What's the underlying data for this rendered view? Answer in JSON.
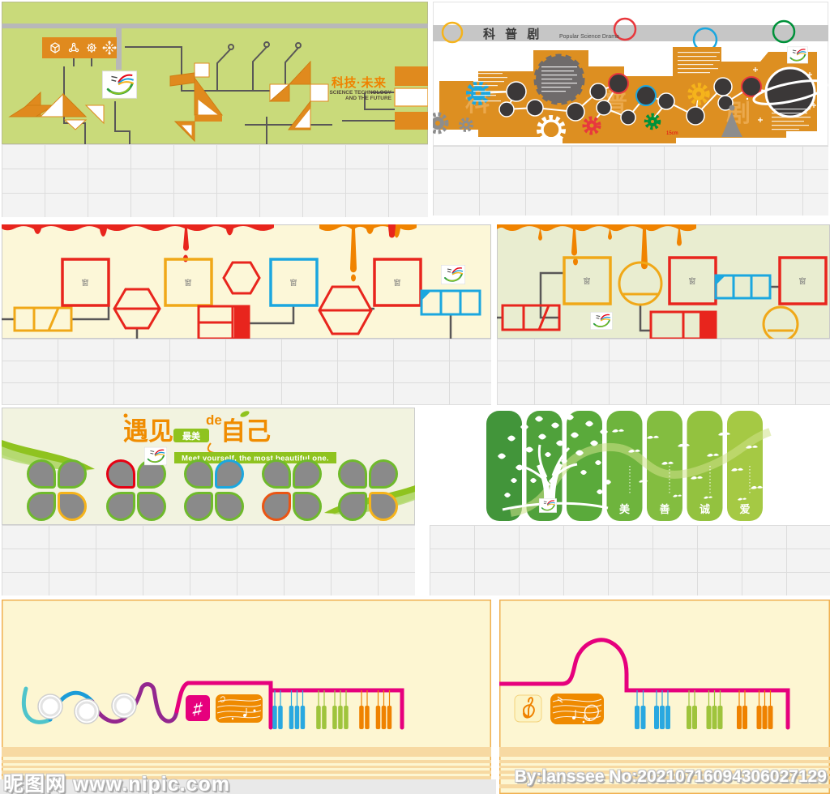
{
  "watermark": {
    "site": "昵图网 www.nipic.com",
    "credit": "By:lanssee No:20210716094306027129"
  },
  "panels": {
    "tech": {
      "title": "科技·未来",
      "subtitle1": "SCIENCE TECHNOLOGY",
      "subtitle2": "AND THE FUTURE"
    },
    "drama": {
      "title": "科 普 剧",
      "subtitle": "Popular Science Drama",
      "ghost_char1": "科",
      "ghost_char2": "普",
      "ghost_char3": "剧",
      "measure_label": "15cm"
    },
    "window_wall": {
      "placeholder_glyph": "窗"
    },
    "meet": {
      "title_lead": "遇见",
      "title_badge": "最美",
      "title_de": "de",
      "title_tail": "自己",
      "banner": "Meet yourself, the most beautiful one."
    },
    "virtue": {
      "char1": "美",
      "char2": "善",
      "char3": "诚",
      "char4": "爱"
    },
    "music": {
      "sharp_glyph": "♯"
    }
  },
  "colors": {
    "tech_wall_green": "#c9da7a",
    "accent_orange": "#e08a1e",
    "drama_wall_orange": "#dd8f21",
    "cream": "#fcf7d8",
    "cream_green": "#e9edd0",
    "drip_red": "#e8251d",
    "frame_yellow": "#f0a818",
    "frame_blue": "#1ba7df",
    "title_orange": "#f08c00",
    "leaf_green": "#8fc31f",
    "petal_gray": "#8a8a8a",
    "magenta": "#e6007d",
    "wave_teal": "#4fc4cb",
    "wave_blue": "#1b9cd8",
    "wave_purple": "#93278f",
    "key_blue": "#29a8e0",
    "key_green": "#9fc43c",
    "key_orange": "#ef8200",
    "bar_greens": [
      "#42953a",
      "#4fa13b",
      "#5aaa3b",
      "#6eb43d",
      "#83bd40",
      "#93c23f",
      "#a5c944"
    ]
  }
}
